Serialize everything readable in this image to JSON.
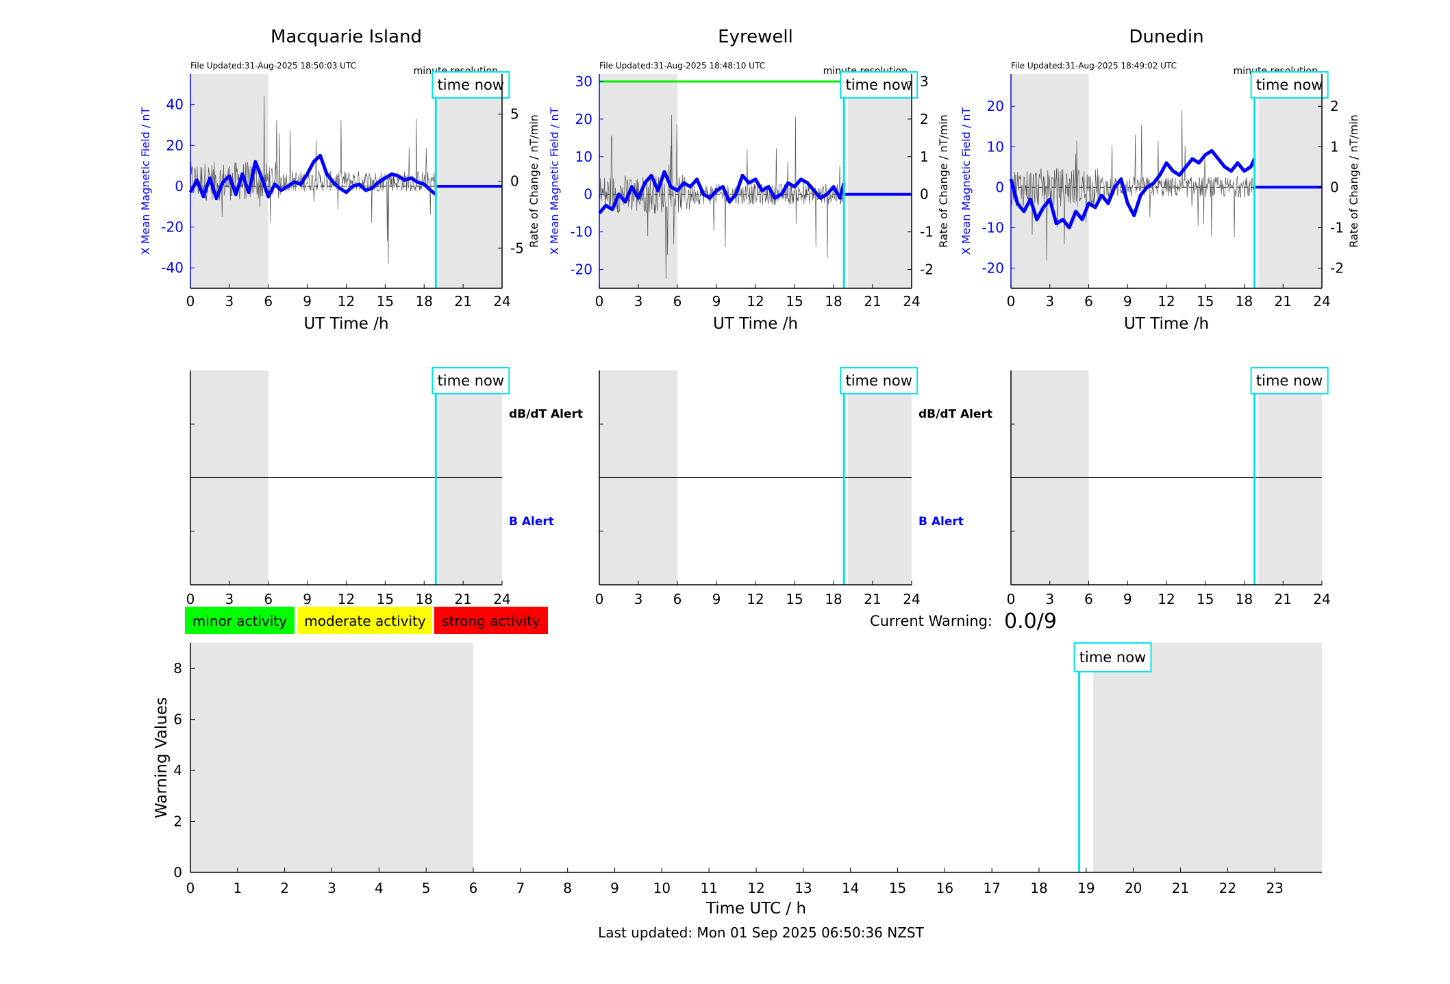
{
  "stations": [
    {
      "name": "Macquarie Island",
      "file_updated": "File Updated:31-Aug-2025 18:50:03 UTC",
      "resolution": "minute resolution",
      "left_ylabel": "X Mean Magnetic Field / nT",
      "right_ylabel": "Rate of Change / nT/min",
      "xlabel": "UT Time /h",
      "left_ticks": [
        "40",
        "20",
        "0",
        "-20",
        "-40"
      ],
      "right_ticks": [
        "5",
        "0",
        "-5"
      ],
      "x_ticks": [
        "0",
        "3",
        "6",
        "9",
        "12",
        "15",
        "18",
        "21",
        "24"
      ],
      "time_now_label": "time now",
      "alert_labels": [
        "dB/dT Alert",
        "B Alert"
      ],
      "alert_x_ticks": [
        "0",
        "3",
        "6",
        "9",
        "12",
        "15",
        "18",
        "21",
        "24"
      ]
    },
    {
      "name": "Eyrewell",
      "file_updated": "File Updated:31-Aug-2025 18:48:10 UTC",
      "resolution": "minute resolution",
      "left_ylabel": "X Mean Magnetic Field / nT",
      "right_ylabel": "Rate of Change / nT/min",
      "xlabel": "UT Time /h",
      "left_ticks": [
        "30",
        "20",
        "10",
        "0",
        "-10",
        "-20"
      ],
      "right_ticks": [
        "3",
        "2",
        "1",
        "0",
        "-1",
        "-2"
      ],
      "x_ticks": [
        "0",
        "3",
        "6",
        "9",
        "12",
        "15",
        "18",
        "21",
        "24"
      ],
      "time_now_label": "time now",
      "alert_labels": [
        "dB/dT Alert",
        "B Alert"
      ],
      "alert_x_ticks": [
        "0",
        "3",
        "6",
        "9",
        "12",
        "15",
        "18",
        "21",
        "24"
      ]
    },
    {
      "name": "Dunedin",
      "file_updated": "File Updated:31-Aug-2025 18:49:02 UTC",
      "resolution": "minute resolution",
      "left_ylabel": "X Mean Magnetic Field / nT",
      "right_ylabel": "Rate of Change / nT/min",
      "xlabel": "UT Time /h",
      "left_ticks": [
        "20",
        "10",
        "0",
        "-10",
        "-20"
      ],
      "right_ticks": [
        "2",
        "1",
        "0",
        "-1",
        "-2"
      ],
      "x_ticks": [
        "0",
        "3",
        "6",
        "9",
        "12",
        "15",
        "18",
        "21",
        "24"
      ],
      "time_now_label": "time now",
      "alert_x_ticks": [
        "0",
        "3",
        "6",
        "9",
        "12",
        "15",
        "18",
        "21",
        "24"
      ]
    }
  ],
  "legend": {
    "minor": "minor activity",
    "moderate": "moderate activity",
    "strong": "strong activity",
    "minor_color": "#00ff00",
    "moderate_color": "#ffff00",
    "strong_color": "#ff0000"
  },
  "current_warning": {
    "label": "Current Warning:",
    "value": "0.0/9"
  },
  "warning_chart": {
    "ylabel": "Warning Values",
    "xlabel": "Time UTC / h",
    "y_ticks": [
      "0",
      "2",
      "4",
      "6",
      "8"
    ],
    "x_ticks": [
      "0",
      "1",
      "2",
      "3",
      "4",
      "5",
      "6",
      "7",
      "8",
      "9",
      "10",
      "11",
      "12",
      "13",
      "14",
      "15",
      "16",
      "17",
      "18",
      "19",
      "20",
      "21",
      "22",
      "23"
    ],
    "time_now_label": "time now"
  },
  "footer": {
    "last_updated": "Last updated: Mon 01 Sep 2025 06:50:36 NZST"
  },
  "colors": {
    "field_trace": "#0000ff",
    "rate_trace": "#555555",
    "time_now": "#00e5ee",
    "shade": "#e6e6e6",
    "threshold": "#00ee00"
  },
  "chart_data": [
    {
      "type": "line",
      "title": "Macquarie Island",
      "xlabel": "UT Time /h",
      "ylabel": "X Mean Magnetic Field / nT",
      "y2label": "Rate of Change / nT/min",
      "xlim": [
        0,
        24
      ],
      "ylim": [
        -50,
        55
      ],
      "y2lim": [
        -8,
        8
      ],
      "shaded_ut": [
        [
          0,
          6
        ],
        [
          19.1,
          24
        ]
      ],
      "time_now_ut": 18.9,
      "series": [
        {
          "axis": "left",
          "x": [
            0,
            0.5,
            1,
            1.5,
            2,
            2.5,
            3,
            3.5,
            4,
            4.5,
            5,
            5.5,
            6,
            6.5,
            7,
            7.5,
            8,
            8.5,
            9,
            9.5,
            10,
            10.5,
            11,
            11.5,
            12,
            12.5,
            13,
            13.5,
            14,
            14.5,
            15,
            15.5,
            16,
            16.5,
            17,
            17.5,
            18,
            18.5,
            18.9
          ],
          "values": [
            -3,
            3,
            -5,
            4,
            -6,
            2,
            5,
            -4,
            6,
            -3,
            12,
            4,
            -5,
            1,
            -2,
            0,
            2,
            1,
            6,
            12,
            15,
            6,
            2,
            -1,
            -3,
            0,
            1,
            -2,
            -1,
            2,
            4,
            6,
            5,
            3,
            4,
            2,
            1,
            -2,
            -4
          ]
        },
        {
          "axis": "left",
          "x": [
            18.9,
            24
          ],
          "values": [
            0,
            0
          ]
        }
      ]
    },
    {
      "type": "line",
      "title": "Eyrewell",
      "xlabel": "UT Time /h",
      "ylabel": "X Mean Magnetic Field / nT",
      "y2label": "Rate of Change / nT/min",
      "xlim": [
        0,
        24
      ],
      "ylim": [
        -25,
        32
      ],
      "y2lim": [
        -2.5,
        3.2
      ],
      "shaded_ut": [
        [
          0,
          6
        ],
        [
          19.1,
          24
        ]
      ],
      "time_now_ut": 18.8,
      "threshold_nT": 30,
      "series": [
        {
          "axis": "left",
          "x": [
            0,
            0.5,
            1,
            1.5,
            2,
            2.5,
            3,
            3.5,
            4,
            4.5,
            5,
            5.5,
            6,
            6.5,
            7,
            7.5,
            8,
            8.5,
            9,
            9.5,
            10,
            10.5,
            11,
            11.5,
            12,
            12.5,
            13,
            13.5,
            14,
            14.5,
            15,
            15.5,
            16,
            16.5,
            17,
            17.5,
            18,
            18.5,
            18.8
          ],
          "values": [
            -5,
            -3,
            -4,
            0,
            -2,
            2,
            -1,
            3,
            5,
            1,
            6,
            2,
            1,
            3,
            2,
            4,
            0,
            -1,
            1,
            2,
            -2,
            0,
            5,
            3,
            4,
            1,
            2,
            -1,
            0,
            3,
            2,
            4,
            3,
            1,
            -1,
            0,
            2,
            -1,
            3
          ]
        },
        {
          "axis": "left",
          "x": [
            18.8,
            24
          ],
          "values": [
            0,
            0
          ]
        }
      ]
    },
    {
      "type": "line",
      "title": "Dunedin",
      "xlabel": "UT Time /h",
      "ylabel": "X Mean Magnetic Field / nT",
      "y2label": "Rate of Change / nT/min",
      "xlim": [
        0,
        24
      ],
      "ylim": [
        -25,
        28
      ],
      "y2lim": [
        -2.5,
        2.8
      ],
      "shaded_ut": [
        [
          0,
          6
        ],
        [
          19.1,
          24
        ]
      ],
      "time_now_ut": 18.8,
      "series": [
        {
          "axis": "left",
          "x": [
            0,
            0.5,
            1,
            1.5,
            2,
            2.5,
            3,
            3.5,
            4,
            4.5,
            5,
            5.5,
            6,
            6.5,
            7,
            7.5,
            8,
            8.5,
            9,
            9.5,
            10,
            10.5,
            11,
            11.5,
            12,
            12.5,
            13,
            13.5,
            14,
            14.5,
            15,
            15.5,
            16,
            16.5,
            17,
            17.5,
            18,
            18.5,
            18.8
          ],
          "values": [
            2,
            -4,
            -6,
            -3,
            -8,
            -5,
            -3,
            -9,
            -8,
            -10,
            -6,
            -8,
            -4,
            -5,
            -2,
            -4,
            0,
            2,
            -4,
            -7,
            -2,
            0,
            1,
            3,
            6,
            4,
            3,
            5,
            7,
            6,
            8,
            9,
            7,
            5,
            4,
            6,
            4,
            5,
            7
          ]
        },
        {
          "axis": "left",
          "x": [
            18.8,
            24
          ],
          "values": [
            0,
            0
          ]
        }
      ]
    },
    {
      "type": "bar",
      "title": "",
      "xlabel": "Time UTC / h",
      "ylabel": "Warning Values",
      "xlim": [
        0,
        24
      ],
      "ylim": [
        0,
        9
      ],
      "shaded_ut": [
        [
          0,
          6
        ],
        [
          19.15,
          24
        ]
      ],
      "time_now_ut": 18.85,
      "categories": [
        "0",
        "1",
        "2",
        "3",
        "4",
        "5",
        "6",
        "7",
        "8",
        "9",
        "10",
        "11",
        "12",
        "13",
        "14",
        "15",
        "16",
        "17",
        "18",
        "19",
        "20",
        "21",
        "22",
        "23"
      ],
      "values": [
        0,
        0,
        0,
        0,
        0,
        0,
        0,
        0,
        0,
        0,
        0,
        0,
        0,
        0,
        0,
        0,
        0,
        0,
        0,
        0,
        0,
        0,
        0,
        0
      ]
    }
  ]
}
